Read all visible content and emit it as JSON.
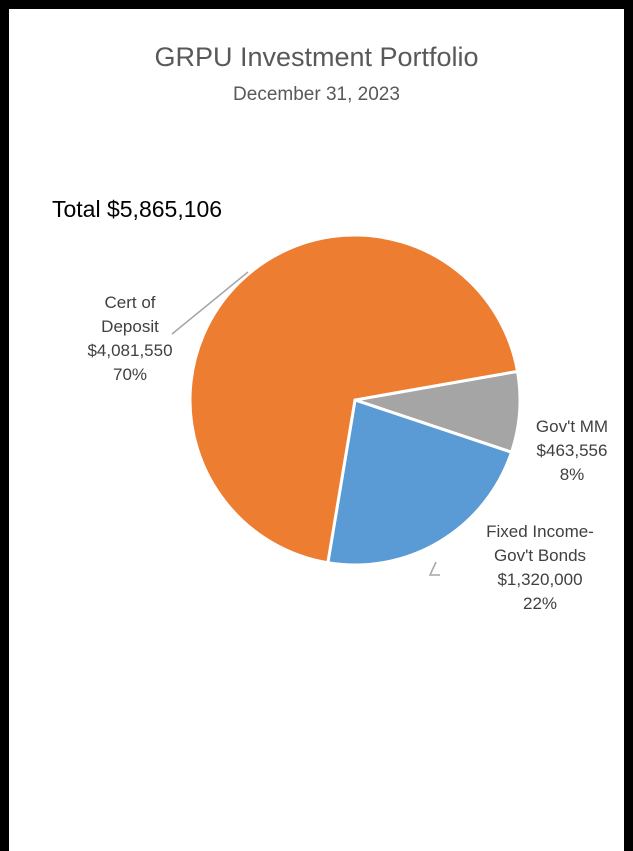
{
  "chart_data": {
    "type": "pie",
    "title": "GRPU Investment Portfolio",
    "subtitle": "December 31, 2023",
    "total_label": "Total $5,865,106",
    "slices": [
      {
        "label": [
          "Gov't MM"
        ],
        "amount": "$463,556",
        "percent_label": "8%",
        "value": 463556,
        "color": "#a5a5a5"
      },
      {
        "label": [
          "Fixed Income-",
          "Gov't Bonds"
        ],
        "amount": "$1,320,000",
        "percent_label": "22%",
        "value": 1320000,
        "color": "#5b9bd5"
      },
      {
        "label": [
          "Cert of",
          "Deposit"
        ],
        "amount": "$4,081,550",
        "percent_label": "70%",
        "value": 4081550,
        "color": "#ed7d31"
      }
    ]
  }
}
